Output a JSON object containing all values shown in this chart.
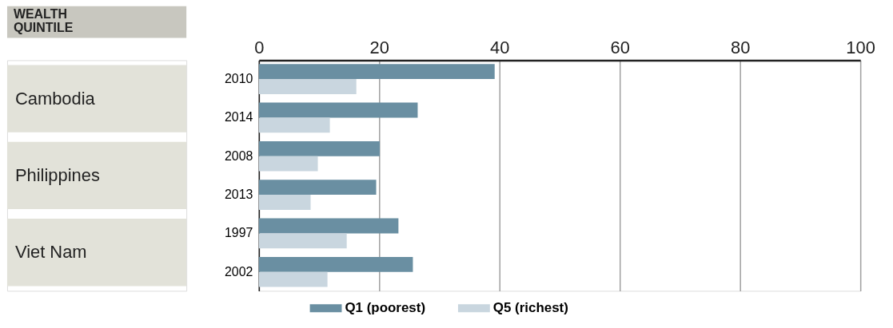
{
  "chart_data": {
    "type": "bar",
    "orientation": "horizontal",
    "title": "WEALTH QUINTILE",
    "categories": [
      "2010",
      "2014",
      "2008",
      "2013",
      "1997",
      "2002"
    ],
    "annotations": [
      "Cambodia",
      "Philippines",
      "Viet Nam"
    ],
    "series": [
      {
        "name": "Q1 (poorest)",
        "color": "#6a8fa2",
        "values": [
          39.2,
          26.4,
          20.1,
          19.5,
          23.2,
          25.6
        ]
      },
      {
        "name": "Q5 (richest)",
        "color": "#c9d6df",
        "values": [
          16.2,
          11.8,
          9.8,
          8.6,
          14.6,
          11.4
        ]
      }
    ],
    "xlim": [
      0,
      100
    ],
    "xticks": [
      0,
      20,
      40,
      60,
      80,
      100
    ],
    "grid": "x",
    "legend": "bottom"
  }
}
